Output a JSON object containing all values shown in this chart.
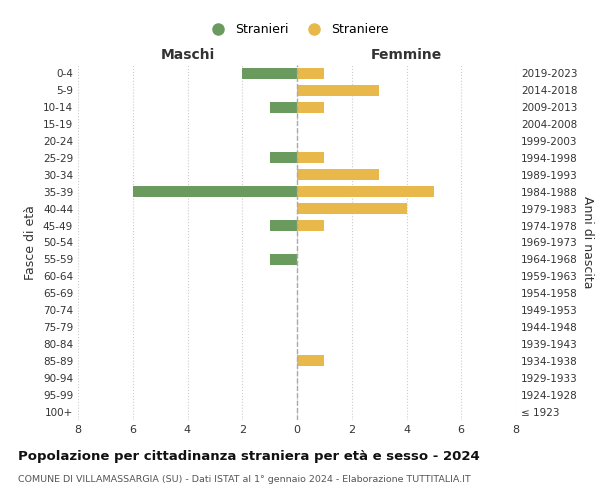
{
  "age_groups": [
    "100+",
    "95-99",
    "90-94",
    "85-89",
    "80-84",
    "75-79",
    "70-74",
    "65-69",
    "60-64",
    "55-59",
    "50-54",
    "45-49",
    "40-44",
    "35-39",
    "30-34",
    "25-29",
    "20-24",
    "15-19",
    "10-14",
    "5-9",
    "0-4"
  ],
  "birth_years": [
    "≤ 1923",
    "1924-1928",
    "1929-1933",
    "1934-1938",
    "1939-1943",
    "1944-1948",
    "1949-1953",
    "1954-1958",
    "1959-1963",
    "1964-1968",
    "1969-1973",
    "1974-1978",
    "1979-1983",
    "1984-1988",
    "1989-1993",
    "1994-1998",
    "1999-2003",
    "2004-2008",
    "2009-2013",
    "2014-2018",
    "2019-2023"
  ],
  "males": [
    0,
    0,
    0,
    0,
    0,
    0,
    0,
    0,
    0,
    1,
    0,
    1,
    0,
    6,
    0,
    1,
    0,
    0,
    1,
    0,
    2
  ],
  "females": [
    0,
    0,
    0,
    1,
    0,
    0,
    0,
    0,
    0,
    0,
    0,
    1,
    4,
    5,
    3,
    1,
    0,
    0,
    1,
    3,
    1
  ],
  "male_color": "#6b9a5e",
  "female_color": "#e8b84b",
  "title": "Popolazione per cittadinanza straniera per età e sesso - 2024",
  "subtitle": "COMUNE DI VILLAMASSARGIA (SU) - Dati ISTAT al 1° gennaio 2024 - Elaborazione TUTTITALIA.IT",
  "xlabel_left": "Maschi",
  "xlabel_right": "Femmine",
  "ylabel_left": "Fasce di età",
  "ylabel_right": "Anni di nascita",
  "legend_male": "Stranieri",
  "legend_female": "Straniere",
  "xlim": 8,
  "background_color": "#ffffff",
  "grid_color": "#cccccc"
}
